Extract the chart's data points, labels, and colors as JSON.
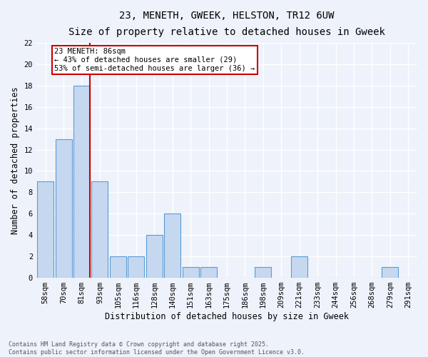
{
  "title1": "23, MENETH, GWEEK, HELSTON, TR12 6UW",
  "title2": "Size of property relative to detached houses in Gweek",
  "xlabel": "Distribution of detached houses by size in Gweek",
  "ylabel": "Number of detached properties",
  "categories": [
    "58sqm",
    "70sqm",
    "81sqm",
    "93sqm",
    "105sqm",
    "116sqm",
    "128sqm",
    "140sqm",
    "151sqm",
    "163sqm",
    "175sqm",
    "186sqm",
    "198sqm",
    "209sqm",
    "221sqm",
    "233sqm",
    "244sqm",
    "256sqm",
    "268sqm",
    "279sqm",
    "291sqm"
  ],
  "values": [
    9,
    13,
    18,
    9,
    2,
    2,
    4,
    6,
    1,
    1,
    0,
    0,
    1,
    0,
    2,
    0,
    0,
    0,
    0,
    1,
    0
  ],
  "bar_color": "#c5d8f0",
  "bar_edge_color": "#5b9bd5",
  "red_line_index": 2,
  "ylim": [
    0,
    22
  ],
  "yticks": [
    0,
    2,
    4,
    6,
    8,
    10,
    12,
    14,
    16,
    18,
    20,
    22
  ],
  "annotation_text": "23 MENETH: 86sqm\n← 43% of detached houses are smaller (29)\n53% of semi-detached houses are larger (36) →",
  "annotation_box_color": "#ffffff",
  "annotation_box_edge": "#cc0000",
  "red_line_color": "#cc0000",
  "footnote": "Contains HM Land Registry data © Crown copyright and database right 2025.\nContains public sector information licensed under the Open Government Licence v3.0.",
  "background_color": "#eef2fa",
  "grid_color": "#ffffff",
  "title_fontsize": 10,
  "subtitle_fontsize": 9,
  "tick_fontsize": 7.5,
  "ylabel_fontsize": 8.5,
  "xlabel_fontsize": 8.5,
  "footnote_fontsize": 6.0,
  "annotation_fontsize": 7.5
}
